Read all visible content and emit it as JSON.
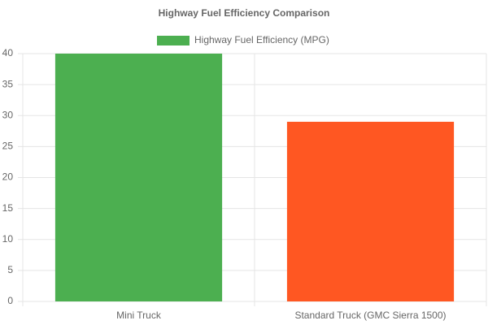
{
  "chart_data": {
    "type": "bar",
    "title": "Highway Fuel Efficiency Comparison",
    "categories": [
      "Mini Truck",
      "Standard Truck (GMC Sierra 1500)"
    ],
    "series": [
      {
        "name": "Highway Fuel Efficiency (MPG)",
        "colors": [
          "#4caf50",
          "#ff5722"
        ],
        "values": [
          40,
          29
        ]
      }
    ],
    "ylim": [
      0,
      40
    ],
    "yticks": [
      0,
      5,
      10,
      15,
      20,
      25,
      30,
      35,
      40
    ],
    "grid": true
  }
}
